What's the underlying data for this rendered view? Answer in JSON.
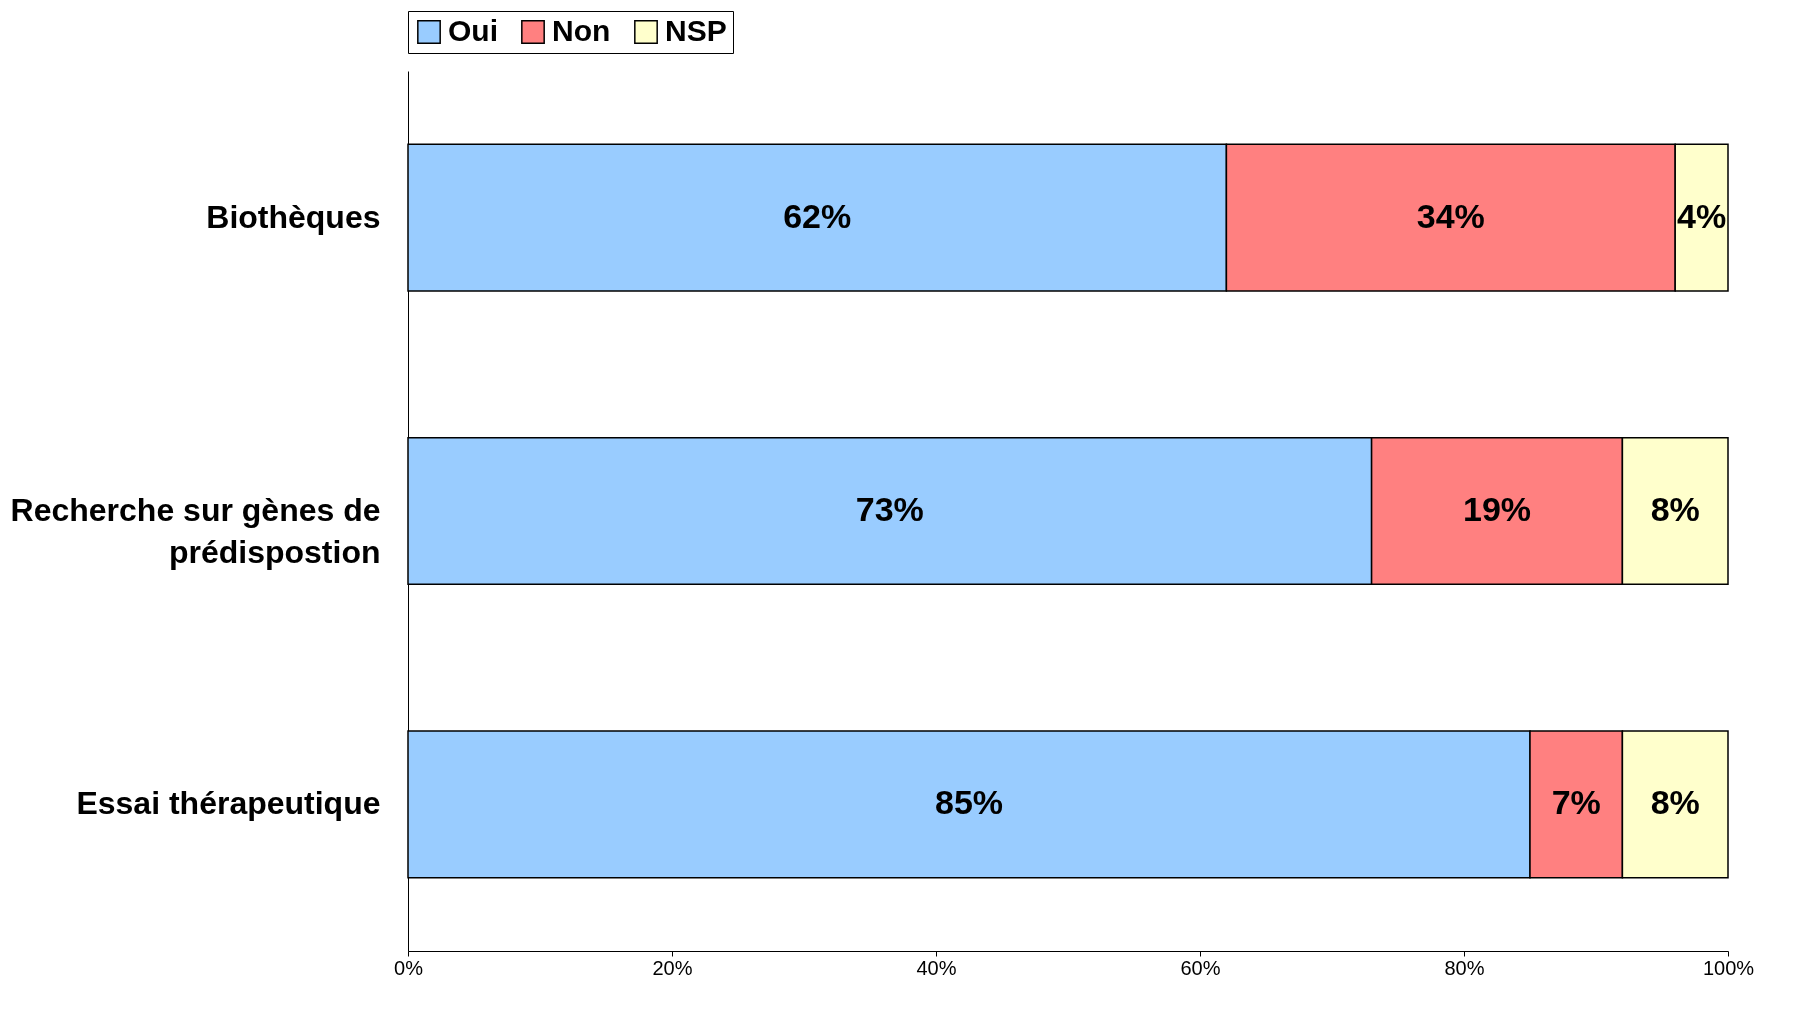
{
  "chart_data": {
    "type": "bar",
    "orientation": "horizontal",
    "stacked": true,
    "categories": [
      "Biothèques",
      "Recherche sur gènes de prédispostion",
      "Essai thérapeutique"
    ],
    "series": [
      {
        "name": "Oui",
        "color": "#99ccff",
        "values": [
          62,
          73,
          85
        ]
      },
      {
        "name": "Non",
        "color": "#ff8080",
        "values": [
          34,
          19,
          7
        ]
      },
      {
        "name": "NSP",
        "color": "#ffffcc",
        "values": [
          4,
          8,
          8
        ]
      }
    ],
    "xlim": [
      0,
      100
    ],
    "xticks": [
      {
        "value": 0,
        "label": "0%"
      },
      {
        "value": 20,
        "label": "20%"
      },
      {
        "value": 40,
        "label": "40%"
      },
      {
        "value": 60,
        "label": "60%"
      },
      {
        "value": 80,
        "label": "80%"
      },
      {
        "value": 100,
        "label": "100%"
      }
    ],
    "value_labels": [
      [
        "62%",
        "73%",
        "85%"
      ],
      [
        "34%",
        "19%",
        "7%"
      ],
      [
        "4%",
        "8%",
        "8%"
      ]
    ],
    "legend": "top",
    "grid": false
  }
}
